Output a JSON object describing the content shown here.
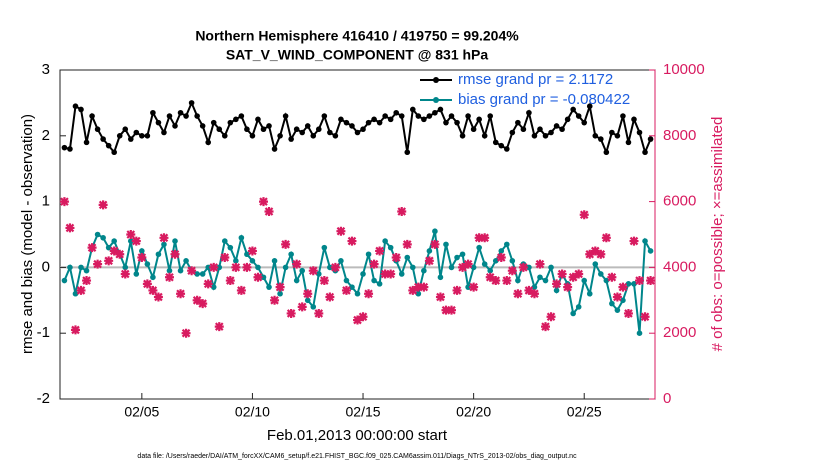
{
  "chart_data": {
    "type": "line",
    "title": "Northern Hemisphere 416410 / 419750 = 99.204%",
    "subtitle": "SAT_V_WIND_COMPONENT @ 831 hPa",
    "xlabel": "Feb.01,2013 00:00:00 start",
    "ylabel": "rmse and bias (model - observation)",
    "y2label": "# of obs: o=possible; ×=assimilated",
    "footnote": "data file: /Users/raeder/DAI/ATM_forcXX/CAM6_setup/f.e21.FHIST_BGC.f09_025.CAM6assim.011/Diags_NTrS_2013-02/obs_diag_output.nc",
    "xlim": [
      1.3,
      28.2
    ],
    "xticks": [
      {
        "value": 5,
        "label": "02/05"
      },
      {
        "value": 10,
        "label": "02/10"
      },
      {
        "value": 15,
        "label": "02/15"
      },
      {
        "value": 20,
        "label": "02/20"
      },
      {
        "value": 25,
        "label": "02/25"
      }
    ],
    "ylim": [
      -2,
      3
    ],
    "yticks": [
      -2,
      -1,
      0,
      1,
      2,
      3
    ],
    "y2lim": [
      0,
      10000
    ],
    "y2ticks": [
      0,
      2000,
      4000,
      6000,
      8000,
      10000
    ],
    "legend": "upper right",
    "x": [
      1.5,
      1.75,
      2,
      2.25,
      2.5,
      2.75,
      3,
      3.25,
      3.5,
      3.75,
      4,
      4.25,
      4.5,
      4.75,
      5,
      5.25,
      5.5,
      5.75,
      6,
      6.25,
      6.5,
      6.75,
      7,
      7.25,
      7.5,
      7.75,
      8,
      8.25,
      8.5,
      8.75,
      9,
      9.25,
      9.5,
      9.75,
      10,
      10.25,
      10.5,
      10.75,
      11,
      11.25,
      11.5,
      11.75,
      12,
      12.25,
      12.5,
      12.75,
      13,
      13.25,
      13.5,
      13.75,
      14,
      14.25,
      14.5,
      14.75,
      15,
      15.25,
      15.5,
      15.75,
      16,
      16.25,
      16.5,
      16.75,
      17,
      17.25,
      17.5,
      17.75,
      18,
      18.25,
      18.5,
      18.75,
      19,
      19.25,
      19.5,
      19.75,
      20,
      20.25,
      20.5,
      20.75,
      21,
      21.25,
      21.5,
      21.75,
      22,
      22.25,
      22.5,
      22.75,
      23,
      23.25,
      23.5,
      23.75,
      24,
      24.25,
      24.5,
      24.75,
      25,
      25.25,
      25.5,
      25.75,
      26,
      26.25,
      26.5,
      26.75,
      27,
      27.25,
      27.5,
      27.75,
      28
    ],
    "series": [
      {
        "name": "rmse grand pr = 2.1172",
        "color": "#000000",
        "values": [
          1.82,
          1.8,
          2.45,
          2.4,
          1.9,
          2.3,
          2.1,
          1.95,
          1.85,
          1.75,
          2.0,
          2.1,
          1.95,
          2.05,
          2.0,
          2.0,
          2.35,
          2.2,
          2.05,
          2.3,
          2.15,
          2.35,
          2.3,
          2.5,
          2.3,
          2.15,
          1.9,
          2.2,
          2.1,
          2.0,
          2.2,
          2.25,
          2.3,
          2.1,
          2.0,
          2.25,
          2.1,
          2.15,
          1.8,
          2.0,
          2.3,
          1.95,
          2.1,
          2.05,
          2.15,
          2.0,
          2.1,
          2.3,
          2.05,
          2.0,
          2.25,
          2.2,
          2.15,
          2.05,
          2.1,
          2.2,
          2.25,
          2.2,
          2.3,
          2.25,
          2.35,
          2.3,
          1.75,
          2.4,
          2.3,
          2.25,
          2.3,
          2.35,
          2.4,
          2.2,
          2.3,
          2.2,
          2.0,
          2.3,
          2.1,
          2.25,
          2.0,
          2.3,
          1.9,
          1.85,
          1.8,
          2.05,
          2.2,
          2.1,
          2.35,
          2.0,
          2.1,
          2.0,
          2.05,
          2.15,
          2.1,
          2.25,
          2.4,
          2.3,
          2.2,
          2.45,
          2.0,
          1.95,
          1.75,
          2.05,
          2.0,
          2.3,
          1.9,
          2.25,
          2.05,
          1.75,
          1.95
        ]
      },
      {
        "name": "bias grand pr = -0.080422",
        "color": "#00868b",
        "values": [
          -0.2,
          0.0,
          -0.4,
          0.0,
          -0.05,
          0.3,
          0.5,
          0.45,
          0.3,
          0.4,
          0.2,
          0.0,
          0.4,
          -0.1,
          0.25,
          0.05,
          -0.15,
          0.2,
          0.35,
          -0.05,
          0.4,
          -0.05,
          0.1,
          -0.05,
          -0.1,
          -0.1,
          0.0,
          -0.3,
          0.0,
          0.4,
          0.3,
          0.1,
          0.45,
          0.2,
          0.1,
          0.0,
          -0.15,
          -0.3,
          0.1,
          -0.4,
          0.0,
          0.2,
          -0.2,
          -0.05,
          -0.5,
          -0.6,
          -0.1,
          0.3,
          0.0,
          -0.05,
          0.1,
          -0.2,
          -0.3,
          -0.4,
          -0.1,
          0.2,
          -0.2,
          -0.25,
          0.4,
          0.3,
          0.1,
          -0.1,
          0.15,
          0.0,
          -0.4,
          -0.05,
          0.25,
          0.55,
          -0.15,
          0.35,
          0.0,
          0.15,
          0.2,
          -0.3,
          0.0,
          0.3,
          0.05,
          -0.05,
          0.1,
          0.25,
          0.35,
          0.1,
          -0.2,
          0.05,
          0.0,
          -0.3,
          -0.15,
          -0.2,
          0.0,
          -0.35,
          -0.1,
          -0.25,
          -0.7,
          -0.6,
          -0.2,
          -0.4,
          0.05,
          -0.1,
          -0.2,
          -0.55,
          -0.65,
          -0.5,
          -0.25,
          -0.25,
          -1.0,
          0.4,
          0.25
        ]
      },
      {
        "color": "#d81b60",
        "axis": "y2",
        "values": [
          6000,
          5200,
          2100,
          3300,
          3600,
          4600,
          4100,
          5900,
          4200,
          4500,
          4400,
          3800,
          5000,
          4800,
          4300,
          3500,
          3300,
          3100,
          4900,
          3700,
          4400,
          3200,
          2000,
          3900,
          3000,
          2900,
          3500,
          4000,
          2200,
          4300,
          3600,
          4000,
          3300,
          4000,
          4500,
          3700,
          6000,
          5700,
          3000,
          3400,
          4700,
          2600,
          4100,
          2800,
          3200,
          3900,
          2600,
          3600,
          3100,
          4000,
          5100,
          3300,
          4800,
          2400,
          2500,
          3200,
          4100,
          4500,
          3800,
          3800,
          4300,
          5700,
          4700,
          3300,
          3400,
          3400,
          4200,
          4700,
          3100,
          2700,
          2700,
          3300,
          4000,
          4100,
          3400,
          4900,
          4900,
          3700,
          3600,
          4300,
          3600,
          3900,
          3200,
          4000,
          3300,
          3200,
          4100,
          2200,
          2500,
          3500,
          3800,
          3400,
          3700,
          3800,
          5600,
          4400,
          4500,
          4400,
          4900,
          3700,
          3100,
          3400,
          2600,
          4800,
          3600,
          2500,
          3600
        ]
      }
    ]
  }
}
